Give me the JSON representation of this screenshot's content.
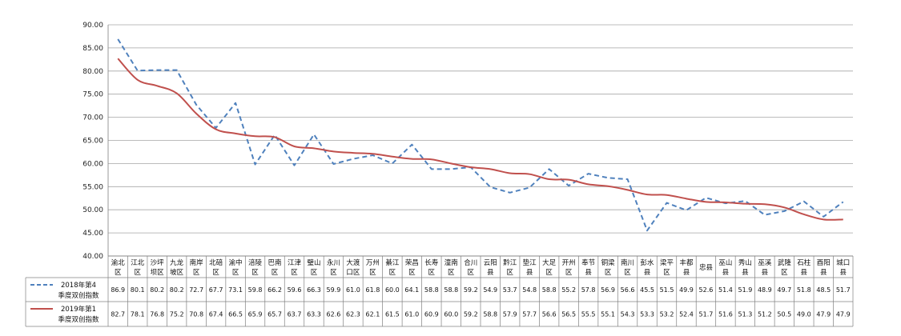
{
  "chart_data": {
    "type": "line",
    "title": "",
    "xlabel": "",
    "ylabel": "",
    "ylim": [
      40,
      90
    ],
    "y_ticks": [
      "40.00",
      "45.00",
      "50.00",
      "55.00",
      "60.00",
      "65.00",
      "70.00",
      "75.00",
      "80.00",
      "85.00",
      "90.00"
    ],
    "grid": true,
    "categories": [
      [
        "渝北",
        "区"
      ],
      [
        "江北",
        "区"
      ],
      [
        "沙坪",
        "坝区"
      ],
      [
        "九龙",
        "坡区"
      ],
      [
        "南岸",
        "区"
      ],
      [
        "北碚",
        "区"
      ],
      [
        "渝中",
        "区"
      ],
      [
        "涪陵",
        "区"
      ],
      [
        "巴南",
        "区"
      ],
      [
        "江津",
        "区"
      ],
      [
        "璧山",
        "区"
      ],
      [
        "永川",
        "区"
      ],
      [
        "大渡",
        "口区"
      ],
      [
        "万州",
        "区"
      ],
      [
        "綦江",
        "区"
      ],
      [
        "荣昌",
        "区"
      ],
      [
        "长寿",
        "区"
      ],
      [
        "潼南",
        "区"
      ],
      [
        "合川",
        "区"
      ],
      [
        "云阳",
        "县"
      ],
      [
        "黔江",
        "区"
      ],
      [
        "垫江",
        "县"
      ],
      [
        "大足",
        "区"
      ],
      [
        "开州",
        "区"
      ],
      [
        "奉节",
        "县"
      ],
      [
        "铜梁",
        "区"
      ],
      [
        "南川",
        "区"
      ],
      [
        "彭水",
        "县"
      ],
      [
        "梁平",
        "区"
      ],
      [
        "丰都",
        "县"
      ],
      [
        "忠县"
      ],
      [
        "巫山",
        "县"
      ],
      [
        "秀山",
        "县"
      ],
      [
        "巫溪",
        "县"
      ],
      [
        "武隆",
        "区"
      ],
      [
        "石柱",
        "县"
      ],
      [
        "酉阳",
        "县"
      ],
      [
        "城口",
        "县"
      ]
    ],
    "series": [
      {
        "name": "2018年第4季度双创指数",
        "color": "#4f81bd",
        "style": "dashed",
        "values": [
          86.9,
          80.1,
          80.2,
          80.2,
          72.7,
          67.7,
          73.1,
          59.8,
          66.2,
          59.6,
          66.3,
          59.9,
          61.0,
          61.8,
          60.0,
          64.1,
          58.8,
          58.8,
          59.2,
          54.9,
          53.7,
          54.8,
          58.8,
          55.2,
          57.8,
          56.9,
          56.6,
          45.5,
          51.5,
          49.9,
          52.6,
          51.4,
          51.9,
          48.9,
          49.7,
          51.8,
          48.5,
          51.7
        ],
        "labels": [
          "86.9",
          "80.1",
          "80.2",
          "80.2",
          "72.7",
          "67.7",
          "73.1",
          "59.8",
          "66.2",
          "59.6",
          "66.3",
          "59.9",
          "61.0",
          "61.8",
          "60.0",
          "64.1",
          "58.8",
          "58.8",
          "59.2",
          "54.9",
          "53.7",
          "54.8",
          "58.8",
          "55.2",
          "57.8",
          "56.9",
          "56.6",
          "45.5",
          "51.5",
          "49.9",
          "52.6",
          "51.4",
          "51.9",
          "48.9",
          "49.7",
          "51.8",
          "48.5",
          "51.7"
        ]
      },
      {
        "name": "2019年第1季度双创指数",
        "color": "#c0504d",
        "style": "solid",
        "values": [
          82.7,
          78.1,
          76.8,
          75.2,
          70.8,
          67.4,
          66.5,
          65.9,
          65.7,
          63.7,
          63.3,
          62.6,
          62.3,
          62.1,
          61.5,
          61.0,
          60.9,
          60.0,
          59.2,
          58.8,
          57.9,
          57.7,
          56.6,
          56.5,
          55.5,
          55.1,
          54.3,
          53.3,
          53.2,
          52.4,
          51.7,
          51.6,
          51.3,
          51.2,
          50.5,
          49.0,
          47.9,
          47.9
        ],
        "labels": [
          "82.7",
          "78.1",
          "76.8",
          "75.2",
          "70.8",
          "67.4",
          "66.5",
          "65.9",
          "65.7",
          "63.7",
          "63.3",
          "62.6",
          "62.3",
          "62.1",
          "61.5",
          "61.0",
          "60.9",
          "60.0",
          "59.2",
          "58.8",
          "57.9",
          "57.7",
          "56.6",
          "56.5",
          "55.5",
          "55.1",
          "54.3",
          "53.3",
          "53.2",
          "52.4",
          "51.7",
          "51.6",
          "51.3",
          "51.2",
          "50.5",
          "49.0",
          "47.9",
          "47.9"
        ]
      }
    ],
    "legend": [
      {
        "line1": "2018年第4",
        "line2": "季度双创指数"
      },
      {
        "line1": "2019年第1",
        "line2": "季度双创指数"
      }
    ],
    "legend_position": "data-table-left"
  }
}
